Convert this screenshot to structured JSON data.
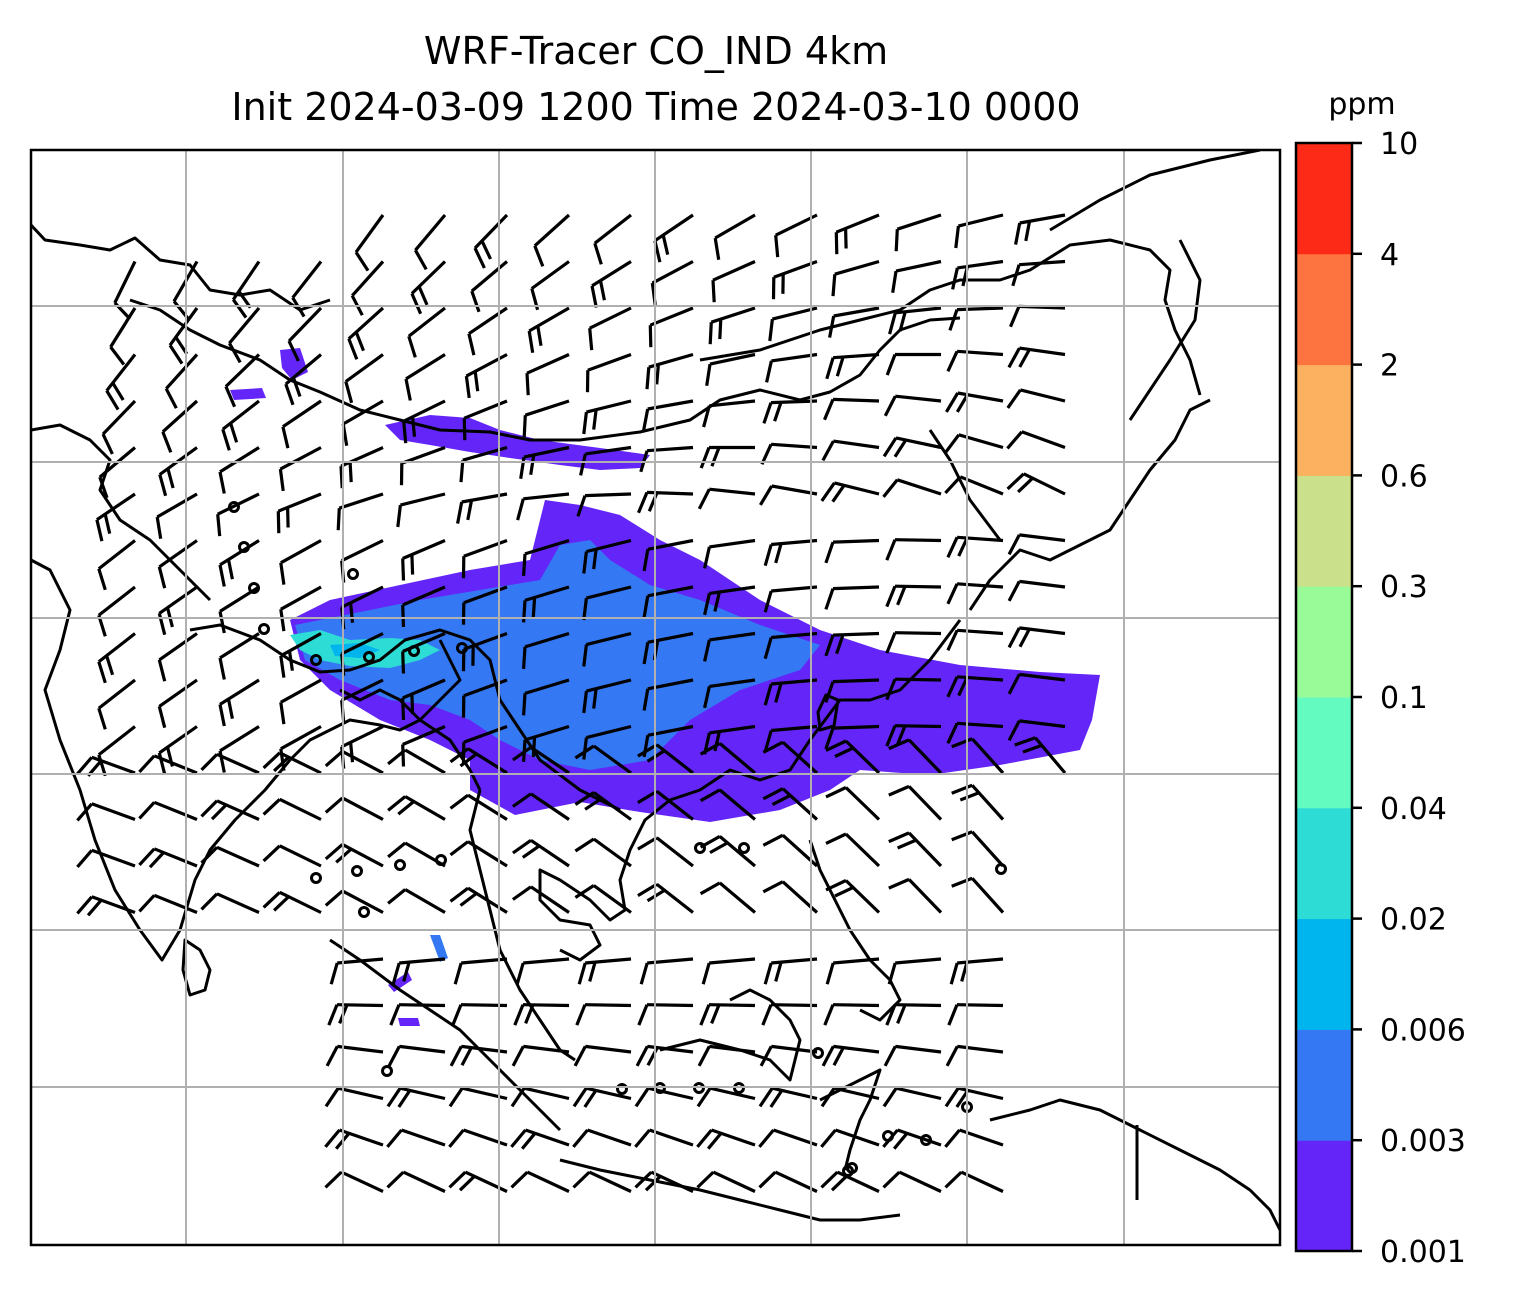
{
  "title": {
    "line1": "WRF-Tracer CO_IND 4km",
    "line2": "Init 2024-03-09 1200 Time 2024-03-10 0000"
  },
  "colorbar": {
    "unit": "ppm",
    "levels": [
      "0.001",
      "0.003",
      "0.006",
      "0.02",
      "0.04",
      "0.1",
      "0.3",
      "0.6",
      "2",
      "4",
      "10"
    ],
    "colors": [
      "#6426f8",
      "#3478f3",
      "#00b4ed",
      "#2ddcd4",
      "#64fbc0",
      "#98fb98",
      "#cbe08a",
      "#fcb160",
      "#fd7440",
      "#fe2a18"
    ]
  },
  "map": {
    "grid_lines": true,
    "features": [
      "coastlines",
      "country-borders",
      "wind-barbs",
      "calm-circles",
      "tracer-plume"
    ]
  }
}
